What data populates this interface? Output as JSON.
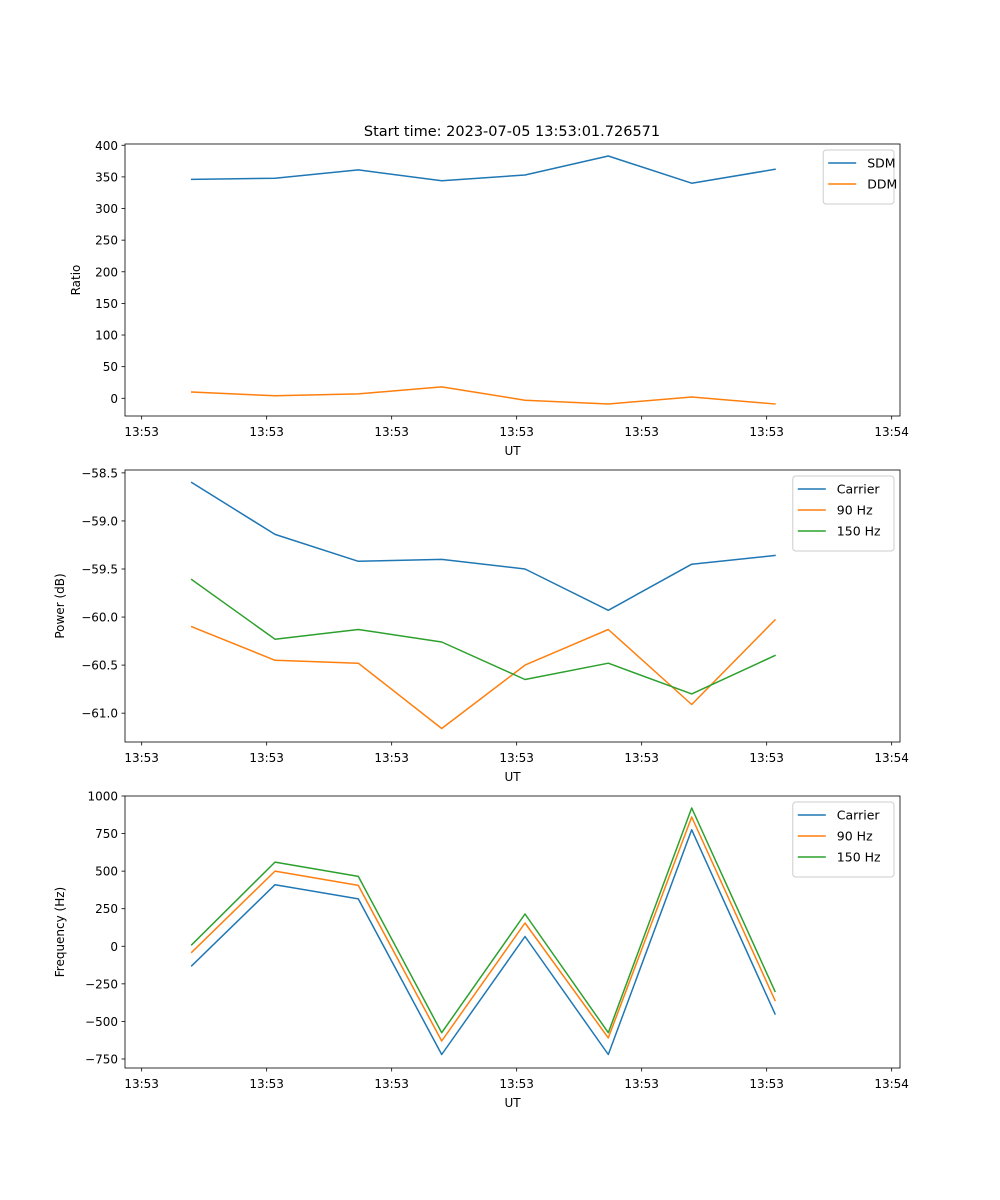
{
  "chart_data": [
    {
      "type": "line",
      "title": "Start time: 2023-07-05 13:53:01.726571",
      "xlabel": "UT",
      "ylabel": "Ratio",
      "x": [
        1,
        2,
        3,
        4,
        5,
        6,
        7,
        8
      ],
      "xlim": [
        0.2,
        9.5
      ],
      "xticks": [
        0.4,
        1.9,
        3.4,
        4.9,
        6.4,
        7.9,
        9.4
      ],
      "xtick_labels": [
        "13:53",
        "13:53",
        "13:53",
        "13:53",
        "13:53",
        "13:53",
        "13:54"
      ],
      "ylim": [
        -28,
        402
      ],
      "yticks": [
        0,
        50,
        100,
        150,
        200,
        250,
        300,
        350,
        400
      ],
      "ytick_labels": [
        "0",
        "50",
        "100",
        "150",
        "200",
        "250",
        "300",
        "350",
        "400"
      ],
      "legend": "upper right",
      "series": [
        {
          "name": "SDM",
          "color": "#1f77b4",
          "values": [
            346,
            348,
            361,
            344,
            353,
            383,
            340,
            362
          ]
        },
        {
          "name": "DDM",
          "color": "#ff7f0e",
          "values": [
            10,
            4,
            7,
            18,
            -3,
            -9,
            2,
            -9
          ]
        }
      ]
    },
    {
      "type": "line",
      "xlabel": "UT",
      "ylabel": "Power (dB)",
      "x": [
        1,
        2,
        3,
        4,
        5,
        6,
        7,
        8
      ],
      "xlim": [
        0.2,
        9.5
      ],
      "xticks": [
        0.4,
        1.9,
        3.4,
        4.9,
        6.4,
        7.9,
        9.4
      ],
      "xtick_labels": [
        "13:53",
        "13:53",
        "13:53",
        "13:53",
        "13:53",
        "13:53",
        "13:54"
      ],
      "ylim": [
        -61.3,
        -58.47
      ],
      "yticks": [
        -61.0,
        -60.5,
        -60.0,
        -59.5,
        -59.0,
        -58.5
      ],
      "ytick_labels": [
        "−61.0",
        "−60.5",
        "−60.0",
        "−59.5",
        "−59.0",
        "−58.5"
      ],
      "legend": "upper right",
      "series": [
        {
          "name": "Carrier",
          "color": "#1f77b4",
          "values": [
            -58.6,
            -59.14,
            -59.42,
            -59.4,
            -59.5,
            -59.93,
            -59.45,
            -59.36
          ]
        },
        {
          "name": "90 Hz",
          "color": "#ff7f0e",
          "values": [
            -60.1,
            -60.45,
            -60.48,
            -61.16,
            -60.5,
            -60.13,
            -60.91,
            -60.03
          ]
        },
        {
          "name": "150 Hz",
          "color": "#2ca02c",
          "values": [
            -59.61,
            -60.23,
            -60.13,
            -60.26,
            -60.65,
            -60.48,
            -60.8,
            -60.4
          ]
        }
      ]
    },
    {
      "type": "line",
      "xlabel": "UT",
      "ylabel": "Frequency (Hz)",
      "x": [
        1,
        2,
        3,
        4,
        5,
        6,
        7,
        8
      ],
      "xlim": [
        0.2,
        9.5
      ],
      "xticks": [
        0.4,
        1.9,
        3.4,
        4.9,
        6.4,
        7.9,
        9.4
      ],
      "xtick_labels": [
        "13:53",
        "13:53",
        "13:53",
        "13:53",
        "13:53",
        "13:53",
        "13:54"
      ],
      "ylim": [
        -810,
        1000
      ],
      "yticks": [
        -750,
        -500,
        -250,
        0,
        250,
        500,
        750,
        1000
      ],
      "ytick_labels": [
        "−750",
        "−500",
        "−250",
        "0",
        "250",
        "500",
        "750",
        "1000"
      ],
      "legend": "upper right",
      "series": [
        {
          "name": "Carrier",
          "color": "#1f77b4",
          "values": [
            -130,
            410,
            315,
            -720,
            65,
            -720,
            775,
            -450
          ]
        },
        {
          "name": "90 Hz",
          "color": "#ff7f0e",
          "values": [
            -40,
            500,
            405,
            -630,
            155,
            -610,
            860,
            -360
          ]
        },
        {
          "name": "150 Hz",
          "color": "#2ca02c",
          "values": [
            10,
            560,
            465,
            -575,
            215,
            -575,
            920,
            -300
          ]
        }
      ]
    }
  ]
}
